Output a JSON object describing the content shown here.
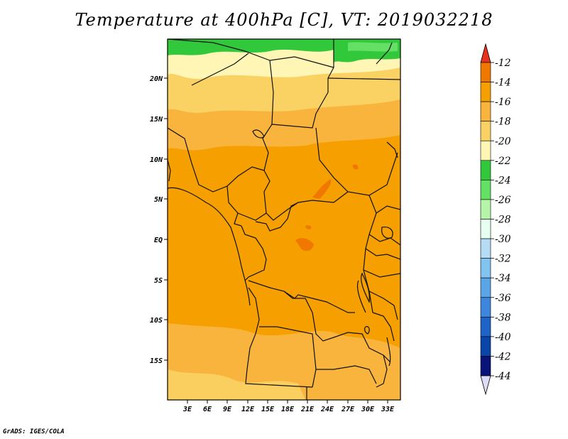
{
  "title": "Temperature at 400hPa [C], VT: 2019032218",
  "credit": "GrADS: IGES/COLA",
  "map": {
    "lat_labels": [
      "20N",
      "15N",
      "10N",
      "5N",
      "EQ",
      "5S",
      "10S",
      "15S"
    ],
    "lon_labels": [
      "3E",
      "6E",
      "9E",
      "12E",
      "15E",
      "18E",
      "21E",
      "24E",
      "27E",
      "30E",
      "33E"
    ]
  },
  "colorbar": {
    "labels": [
      "-12",
      "-14",
      "-16",
      "-18",
      "-20",
      "-22",
      "-24",
      "-26",
      "-28",
      "-30",
      "-32",
      "-34",
      "-36",
      "-38",
      "-40",
      "-42",
      "-44"
    ],
    "colors": [
      "#f0501e",
      "#f07800",
      "#f5a000",
      "#f8b43c",
      "#fad264",
      "#fff5b4",
      "#32c83c",
      "#64e164",
      "#b4f5aa",
      "#e6fff0",
      "#b4dcf5",
      "#82c3f0",
      "#5aa5e6",
      "#3c87dc",
      "#1e64c8",
      "#0a46aa",
      "#0a1478"
    ],
    "top_arrow_color": "#e6321e",
    "bottom_arrow_color": "#dcdcf5"
  }
}
